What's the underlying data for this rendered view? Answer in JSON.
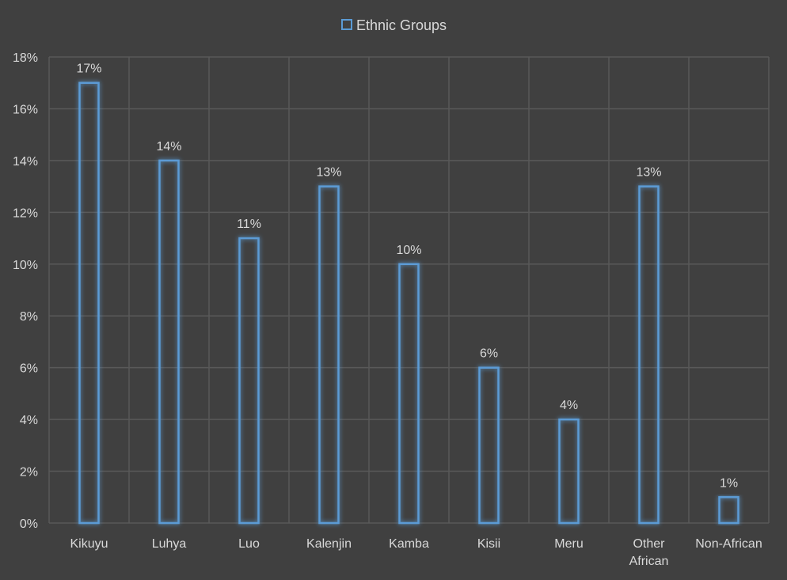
{
  "chart_data": {
    "type": "bar",
    "title": "",
    "xlabel": "",
    "ylabel": "",
    "categories": [
      "Kikuyu",
      "Luhya",
      "Luo",
      "Kalenjin",
      "Kamba",
      "Kisii",
      "Meru",
      "Other African",
      "Non-African"
    ],
    "series": [
      {
        "name": "Ethnic Groups",
        "values": [
          0.17,
          0.14,
          0.11,
          0.13,
          0.1,
          0.06,
          0.04,
          0.13,
          0.01
        ],
        "data_labels": [
          "17%",
          "14%",
          "11%",
          "13%",
          "10%",
          "6%",
          "4%",
          "13%",
          "1%"
        ]
      }
    ],
    "ylim": [
      0,
      0.18
    ],
    "yticks": [
      0,
      0.02,
      0.04,
      0.06,
      0.08,
      0.1,
      0.12,
      0.14,
      0.16,
      0.18
    ],
    "ytick_labels": [
      "0%",
      "2%",
      "4%",
      "6%",
      "8%",
      "10%",
      "12%",
      "14%",
      "16%",
      "18%"
    ],
    "grid": true,
    "legend_position": "top",
    "colors": {
      "background": "#404040",
      "bar_outline": "#5b9bd5",
      "bar_glow": "#2e75b6",
      "grid": "#595959",
      "text": "#d9d9d9"
    }
  }
}
